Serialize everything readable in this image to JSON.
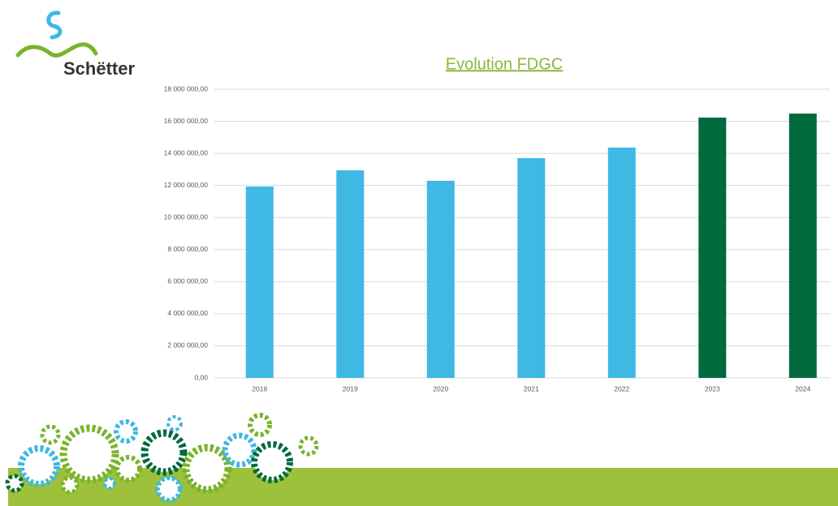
{
  "logo": {
    "text": "Schëtter"
  },
  "chart_data": {
    "type": "bar",
    "title": "Evolution FDGC",
    "categories": [
      "2018",
      "2019",
      "2020",
      "2021",
      "2022",
      "2023",
      "2024"
    ],
    "values": [
      11930000,
      12940000,
      12290000,
      13700000,
      14360000,
      16230000,
      16480000
    ],
    "colors": [
      "#3fb8e4",
      "#3fb8e4",
      "#3fb8e4",
      "#3fb8e4",
      "#3fb8e4",
      "#006a3e",
      "#006a3e"
    ],
    "ylim": [
      0,
      18000000
    ],
    "yticks": [
      {
        "value": 0,
        "label": "0,00"
      },
      {
        "value": 2000000,
        "label": "2 000 000,00"
      },
      {
        "value": 4000000,
        "label": "4 000 000,00"
      },
      {
        "value": 6000000,
        "label": "6 000 000,00"
      },
      {
        "value": 8000000,
        "label": "8 000 000,00"
      },
      {
        "value": 10000000,
        "label": "10 000 000,00"
      },
      {
        "value": 12000000,
        "label": "12 000 000,00"
      },
      {
        "value": 14000000,
        "label": "14 000 000,00"
      },
      {
        "value": 16000000,
        "label": "16 000 000,00"
      },
      {
        "value": 18000000,
        "label": "18 000 000,00"
      }
    ],
    "grid": true
  }
}
